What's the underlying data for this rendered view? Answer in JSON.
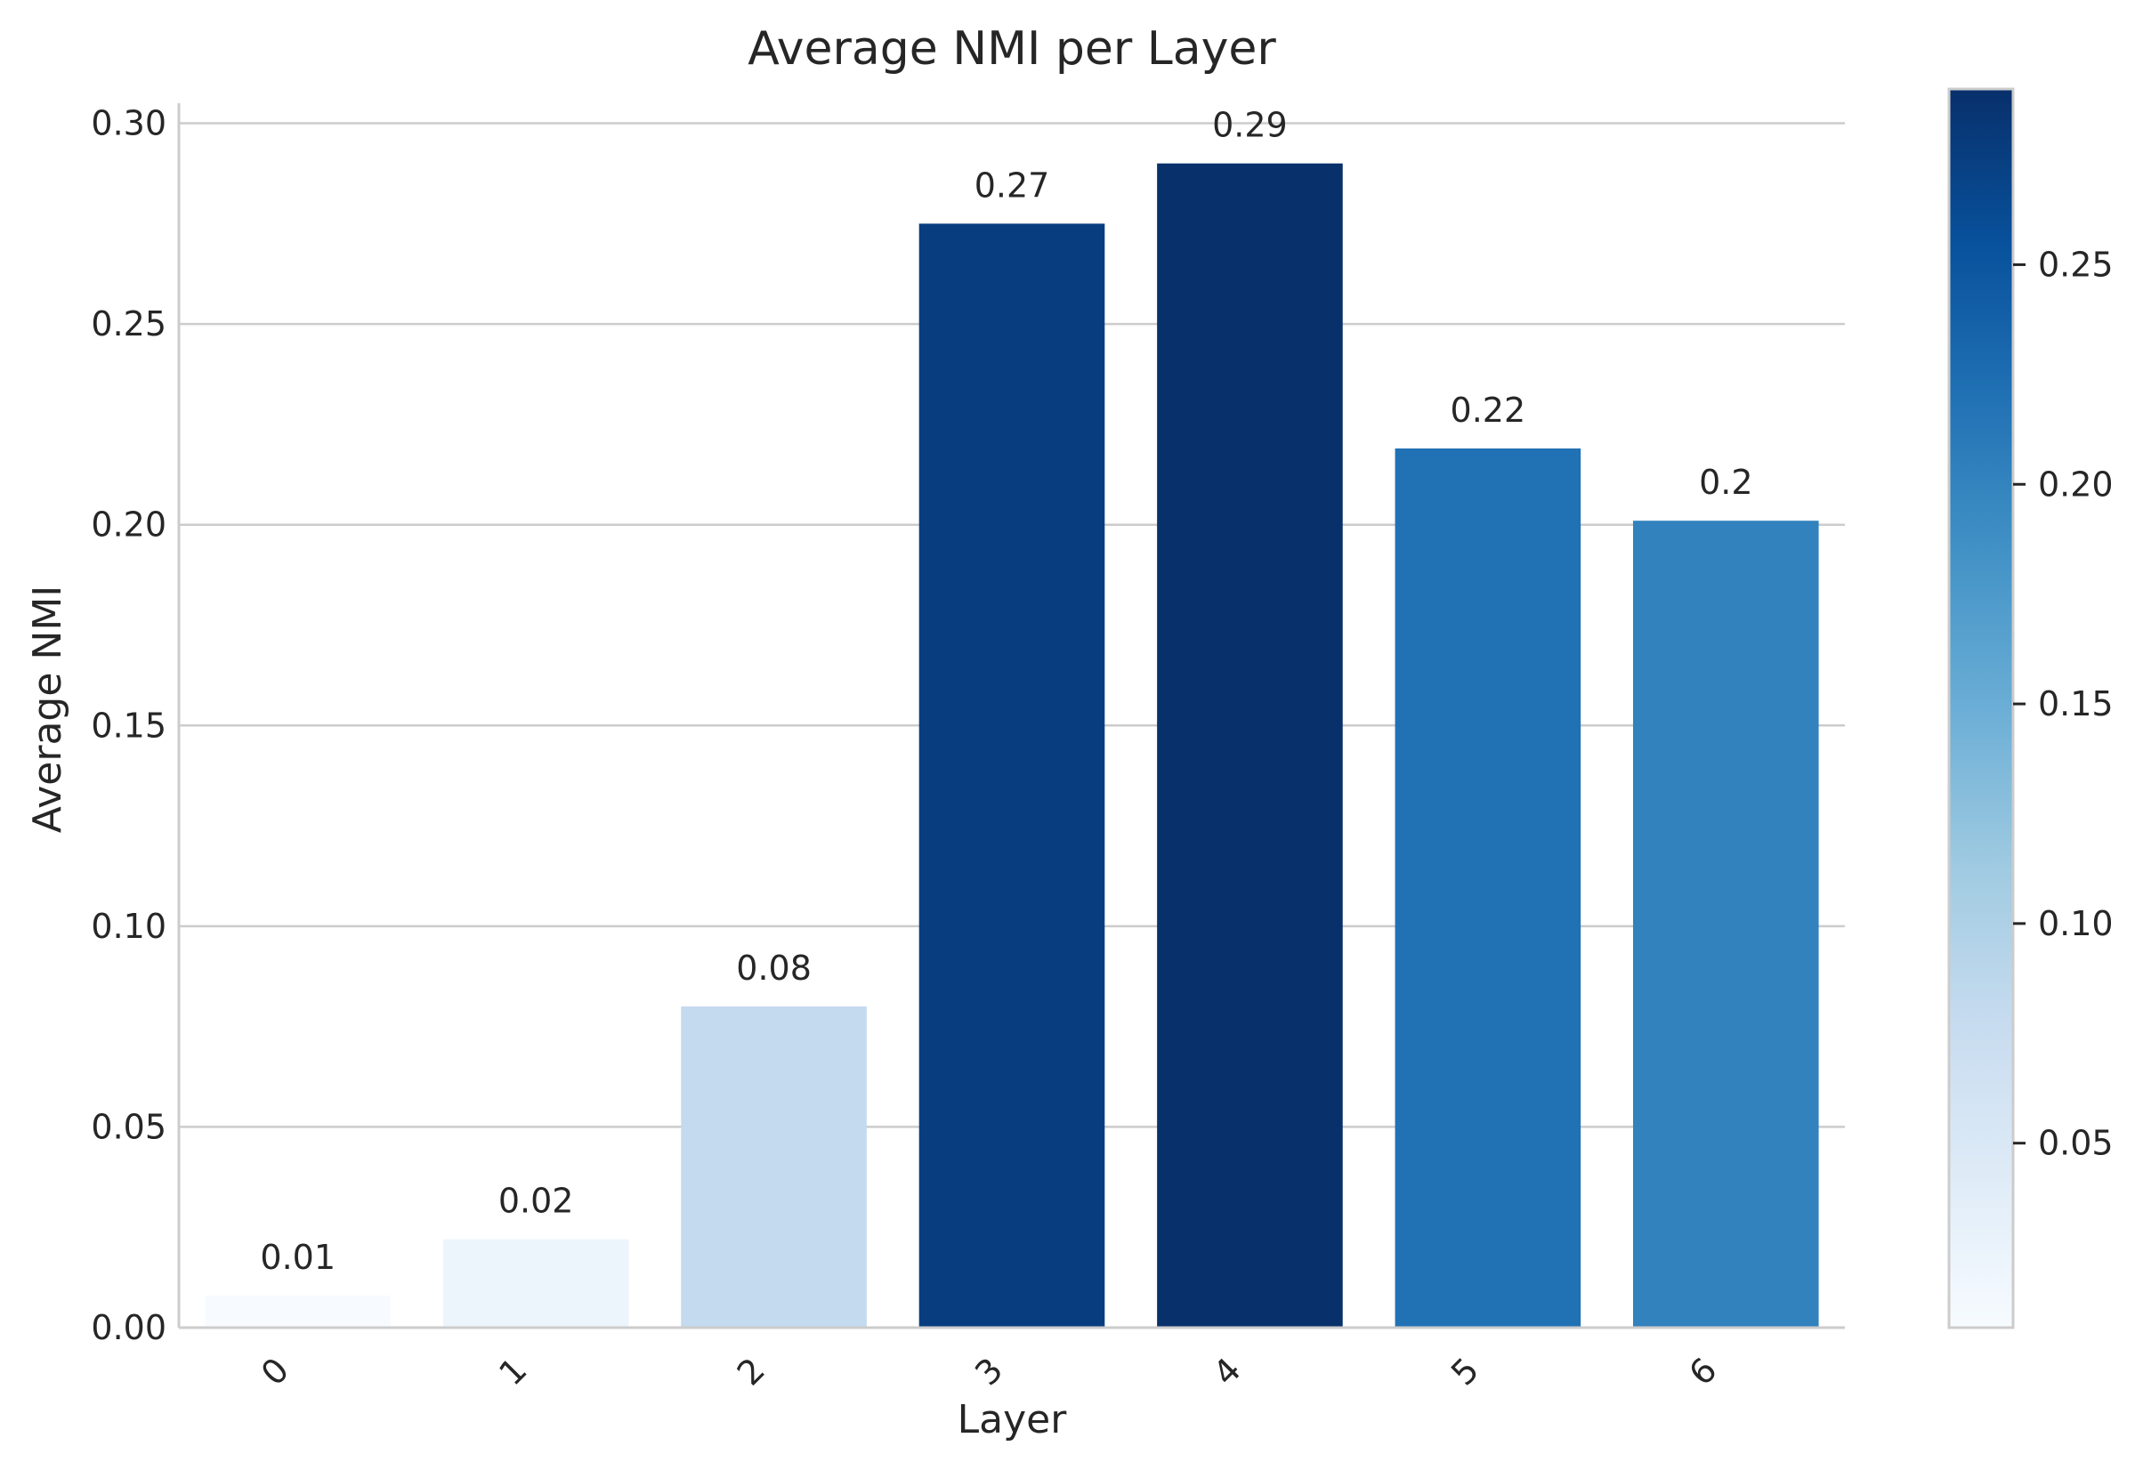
{
  "chart_data": {
    "type": "bar",
    "title": "Average NMI per Layer",
    "xlabel": "Layer",
    "ylabel": "Average NMI",
    "categories": [
      "0",
      "1",
      "2",
      "3",
      "4",
      "5",
      "6"
    ],
    "values": [
      0.008,
      0.022,
      0.08,
      0.275,
      0.29,
      0.219,
      0.201
    ],
    "data_labels": [
      "0.01",
      "0.02",
      "0.08",
      "0.27",
      "0.29",
      "0.22",
      "0.2"
    ],
    "ylim": [
      0,
      0.305
    ],
    "yticks": [
      "0.00",
      "0.05",
      "0.10",
      "0.15",
      "0.20",
      "0.25",
      "0.30"
    ],
    "grid": true,
    "colormap": "Blues",
    "colorbar": {
      "range": [
        0.008,
        0.29
      ],
      "ticks": [
        "0.05",
        "0.10",
        "0.15",
        "0.20",
        "0.25"
      ]
    }
  }
}
